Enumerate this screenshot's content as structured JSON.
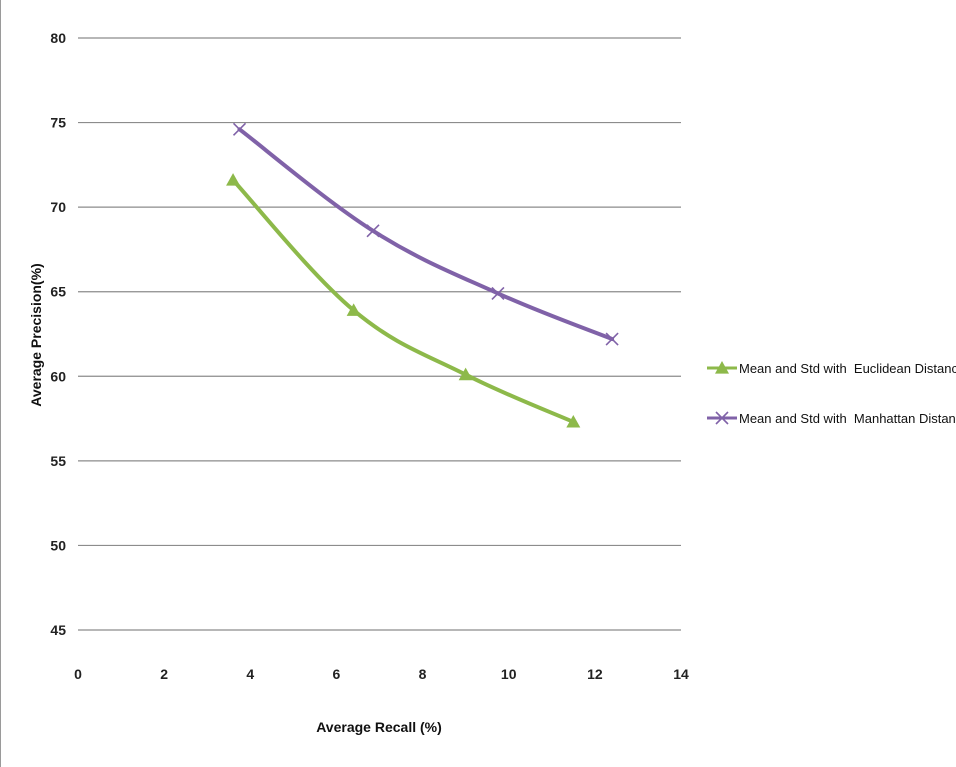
{
  "chart_data": {
    "type": "line",
    "title": "",
    "xlabel": "Average Recall (%)",
    "ylabel": "Average Precision(%)",
    "xlim": [
      0,
      14
    ],
    "ylim": [
      45,
      80
    ],
    "xticks": [
      0,
      2,
      4,
      6,
      8,
      10,
      12,
      14
    ],
    "yticks": [
      45,
      50,
      55,
      60,
      65,
      70,
      75,
      80
    ],
    "grid": "horizontal",
    "legend_position": "right",
    "series": [
      {
        "name": "Mean and Std with  Euclidean Distance",
        "color": "#8db94a",
        "marker": "triangle",
        "x": [
          3.6,
          6.4,
          9.0,
          11.5
        ],
        "y": [
          71.6,
          63.9,
          60.1,
          57.3
        ]
      },
      {
        "name": "Mean and Std with  Manhattan Distance",
        "color": "#8062a8",
        "marker": "x",
        "x": [
          3.75,
          6.85,
          9.75,
          12.4
        ],
        "y": [
          74.6,
          68.6,
          64.9,
          62.2
        ]
      }
    ]
  }
}
